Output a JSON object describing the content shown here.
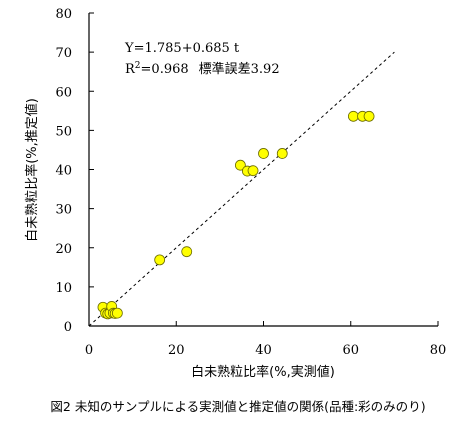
{
  "chart_data": {
    "type": "scatter",
    "title": "",
    "xlabel": "白未熟粒比率(%,実測値)",
    "ylabel": "白未熟粒比率(%,推定値)",
    "xlim": [
      0,
      80
    ],
    "ylim": [
      0,
      80
    ],
    "xticks": [
      "0",
      "20",
      "40",
      "60",
      "80"
    ],
    "yticks": [
      "0",
      "10",
      "20",
      "30",
      "40",
      "50",
      "60",
      "70",
      "80"
    ],
    "grid": false,
    "marker_color": "#ffff00",
    "marker_edge_color": "#6b6b00",
    "points": [
      {
        "x": 3.2,
        "y": 4.8
      },
      {
        "x": 3.8,
        "y": 3.3
      },
      {
        "x": 4.3,
        "y": 3.1
      },
      {
        "x": 4.8,
        "y": 3.3
      },
      {
        "x": 5.2,
        "y": 5.0
      },
      {
        "x": 5.6,
        "y": 3.3
      },
      {
        "x": 6.0,
        "y": 3.2
      },
      {
        "x": 6.5,
        "y": 3.3
      },
      {
        "x": 16.2,
        "y": 16.9
      },
      {
        "x": 22.4,
        "y": 19.0
      },
      {
        "x": 34.7,
        "y": 41.1
      },
      {
        "x": 36.3,
        "y": 39.6
      },
      {
        "x": 37.6,
        "y": 39.7
      },
      {
        "x": 40.0,
        "y": 44.1
      },
      {
        "x": 44.3,
        "y": 44.1
      },
      {
        "x": 60.6,
        "y": 53.6
      },
      {
        "x": 62.7,
        "y": 53.6
      },
      {
        "x": 64.2,
        "y": 53.6
      }
    ],
    "regression": {
      "slope": 0.685,
      "intercept": 1.785,
      "style": "dashed",
      "from": [
        0,
        0
      ],
      "to": [
        70,
        70
      ]
    },
    "annotation": {
      "equation": "Y=1.785+0.685 t",
      "r2_prefix": "R",
      "r2_sup": "2",
      "r2_value": "=0.968",
      "se_label": "標準誤差3.92"
    }
  },
  "caption": "図2 未知のサンプルによる実測値と推定値の関係(品種:彩のみのり)"
}
